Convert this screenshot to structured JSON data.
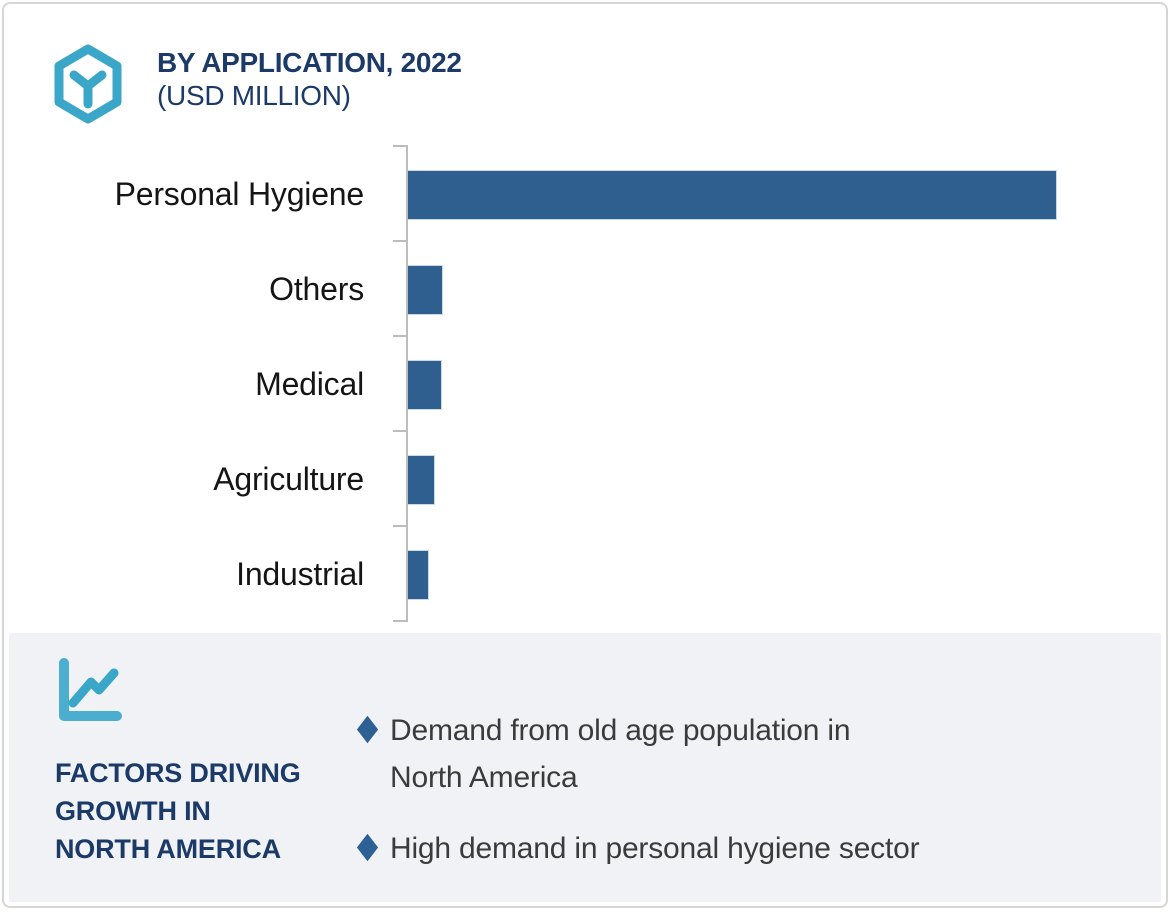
{
  "header": {
    "title_line1": "BY APPLICATION, 2022",
    "title_line2": "(USD MILLION)",
    "icon": "hexagon-cube-icon",
    "accent_teal": "#3AA7C8",
    "accent_navy": "#1C3A68"
  },
  "chart_data": {
    "type": "bar",
    "orientation": "horizontal",
    "title": "BY APPLICATION, 2022 (USD MILLION)",
    "units": "USD Million",
    "categories": [
      "Personal Hygiene",
      "Others",
      "Medical",
      "Agriculture",
      "Industrial"
    ],
    "values": [
      100,
      5.2,
      5.1,
      4.0,
      3.1
    ],
    "values_note": "relative bar lengths in % of longest bar; numeric value axis not shown in image",
    "bar_color": "#2E5F8E",
    "axis_color": "#BDBDBD",
    "value_axis_labels_visible": false,
    "gridlines": false,
    "legend": false
  },
  "factors_panel": {
    "icon": "line-chart-icon",
    "heading": "FACTORS DRIVING\nGROWTH IN\nNORTH AMERICA",
    "bullets": [
      "Demand from old age population in\nNorth America",
      "High demand in personal hygiene sector"
    ],
    "bullet_marker": "diamond",
    "diamond_color": "#2D6094",
    "background_color": "#F0F2F6"
  }
}
